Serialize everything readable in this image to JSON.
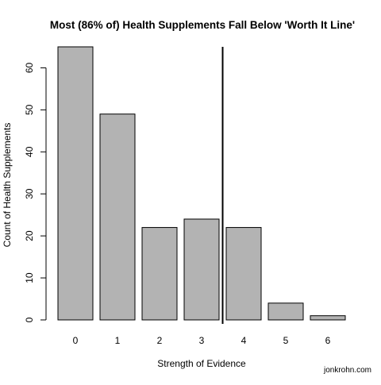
{
  "chart_data": {
    "type": "bar",
    "title": "Most (86% of) Health Supplements Fall Below 'Worth It Line'",
    "xlabel": "Strength of Evidence",
    "ylabel": "Count of Health Supplements",
    "categories": [
      "0",
      "1",
      "2",
      "3",
      "4",
      "5",
      "6"
    ],
    "values": [
      65,
      49,
      22,
      24,
      22,
      4,
      1
    ],
    "ylim": [
      0,
      65
    ],
    "yticks": [
      0,
      10,
      20,
      30,
      40,
      50,
      60
    ],
    "threshold_between": [
      "3",
      "4"
    ],
    "bar_color": "#b3b3b3",
    "grid": false
  },
  "credit": "jonkrohn.com"
}
